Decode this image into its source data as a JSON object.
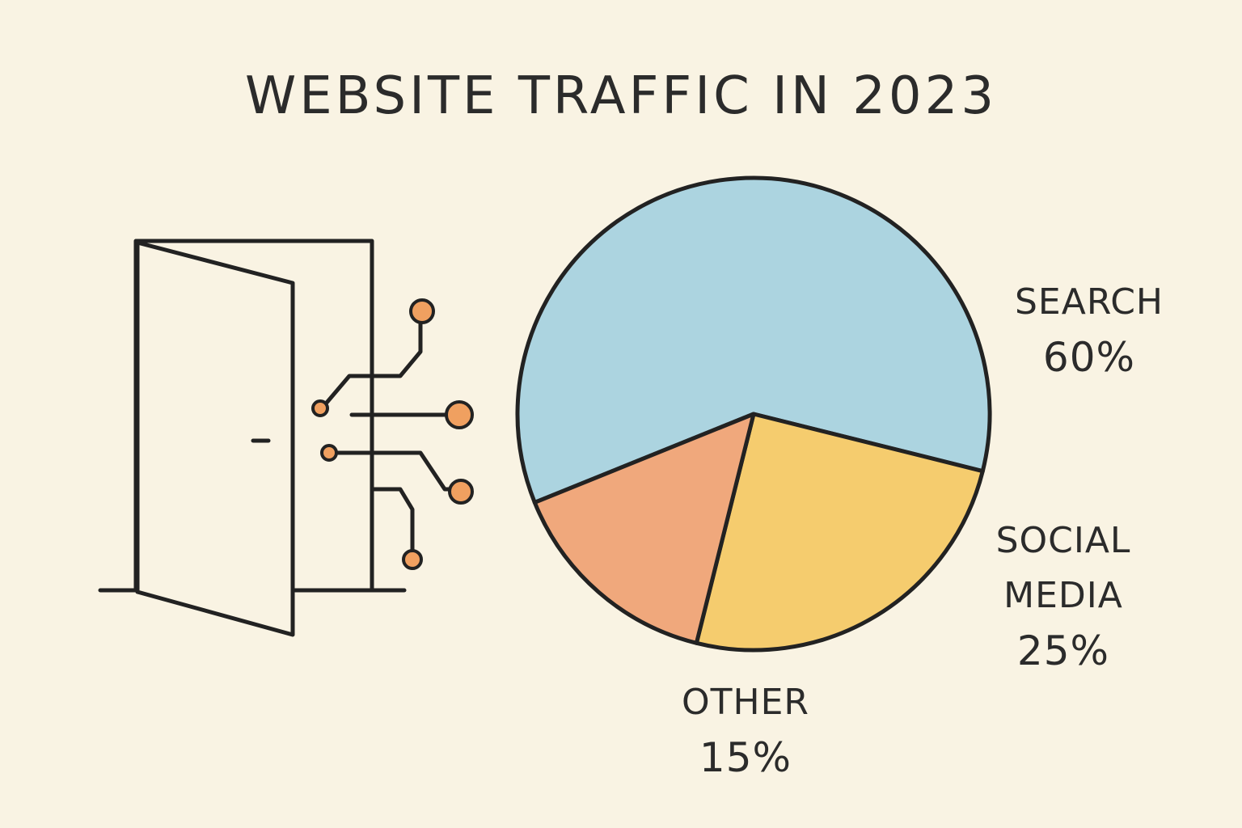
{
  "chart_data": {
    "type": "pie",
    "title": "WEBSITE TRAFFIC IN 2023",
    "categories": [
      "SEARCH",
      "SOCIAL MEDIA",
      "OTHER"
    ],
    "values": [
      60,
      25,
      15
    ],
    "value_labels": [
      "60%",
      "25%",
      "15%"
    ],
    "colors": [
      "#acd4e0",
      "#f5cc6e",
      "#f0a87c"
    ]
  }
}
